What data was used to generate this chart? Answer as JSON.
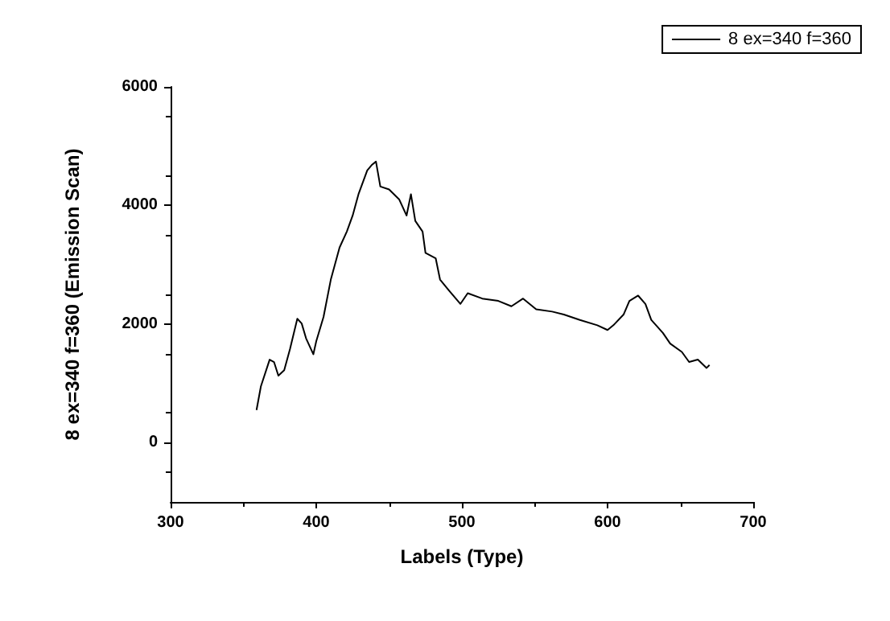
{
  "chart_data": {
    "type": "line",
    "xlabel": "Labels (Type)",
    "ylabel": "8 ex=340 f=360 (Emission Scan)",
    "legend": "top right",
    "grid": false,
    "marker": "none",
    "line_style": "solid",
    "xlim": [
      300,
      700
    ],
    "xticks": [
      300,
      400,
      500,
      600,
      700
    ],
    "ylim": [
      -1000,
      6000
    ],
    "yticks": [
      0,
      2000,
      4000,
      6000
    ],
    "series": [
      {
        "name": "8 ex=340 f=360",
        "color": "#000000",
        "x": [
          359,
          362,
          368,
          371,
          374,
          378,
          382,
          387,
          390,
          393,
          398,
          400,
          405,
          410,
          416,
          421,
          425,
          429,
          435,
          438,
          441,
          444,
          450,
          457,
          462,
          465,
          468,
          473,
          475,
          482,
          485,
          491,
          499,
          504,
          514,
          525,
          534,
          542,
          551,
          562,
          570,
          581,
          593,
          600,
          604,
          611,
          615,
          621,
          626,
          630,
          638,
          643,
          651,
          656,
          662,
          668,
          670
        ],
        "values": [
          550,
          950,
          1400,
          1360,
          1130,
          1220,
          1580,
          2090,
          2010,
          1760,
          1490,
          1710,
          2120,
          2750,
          3290,
          3560,
          3830,
          4190,
          4590,
          4680,
          4740,
          4320,
          4270,
          4100,
          3830,
          4190,
          3740,
          3560,
          3200,
          3110,
          2750,
          2570,
          2340,
          2520,
          2430,
          2390,
          2300,
          2430,
          2250,
          2210,
          2160,
          2070,
          1980,
          1900,
          1980,
          2160,
          2390,
          2480,
          2340,
          2070,
          1850,
          1670,
          1530,
          1360,
          1400,
          1260,
          1310
        ]
      }
    ]
  }
}
